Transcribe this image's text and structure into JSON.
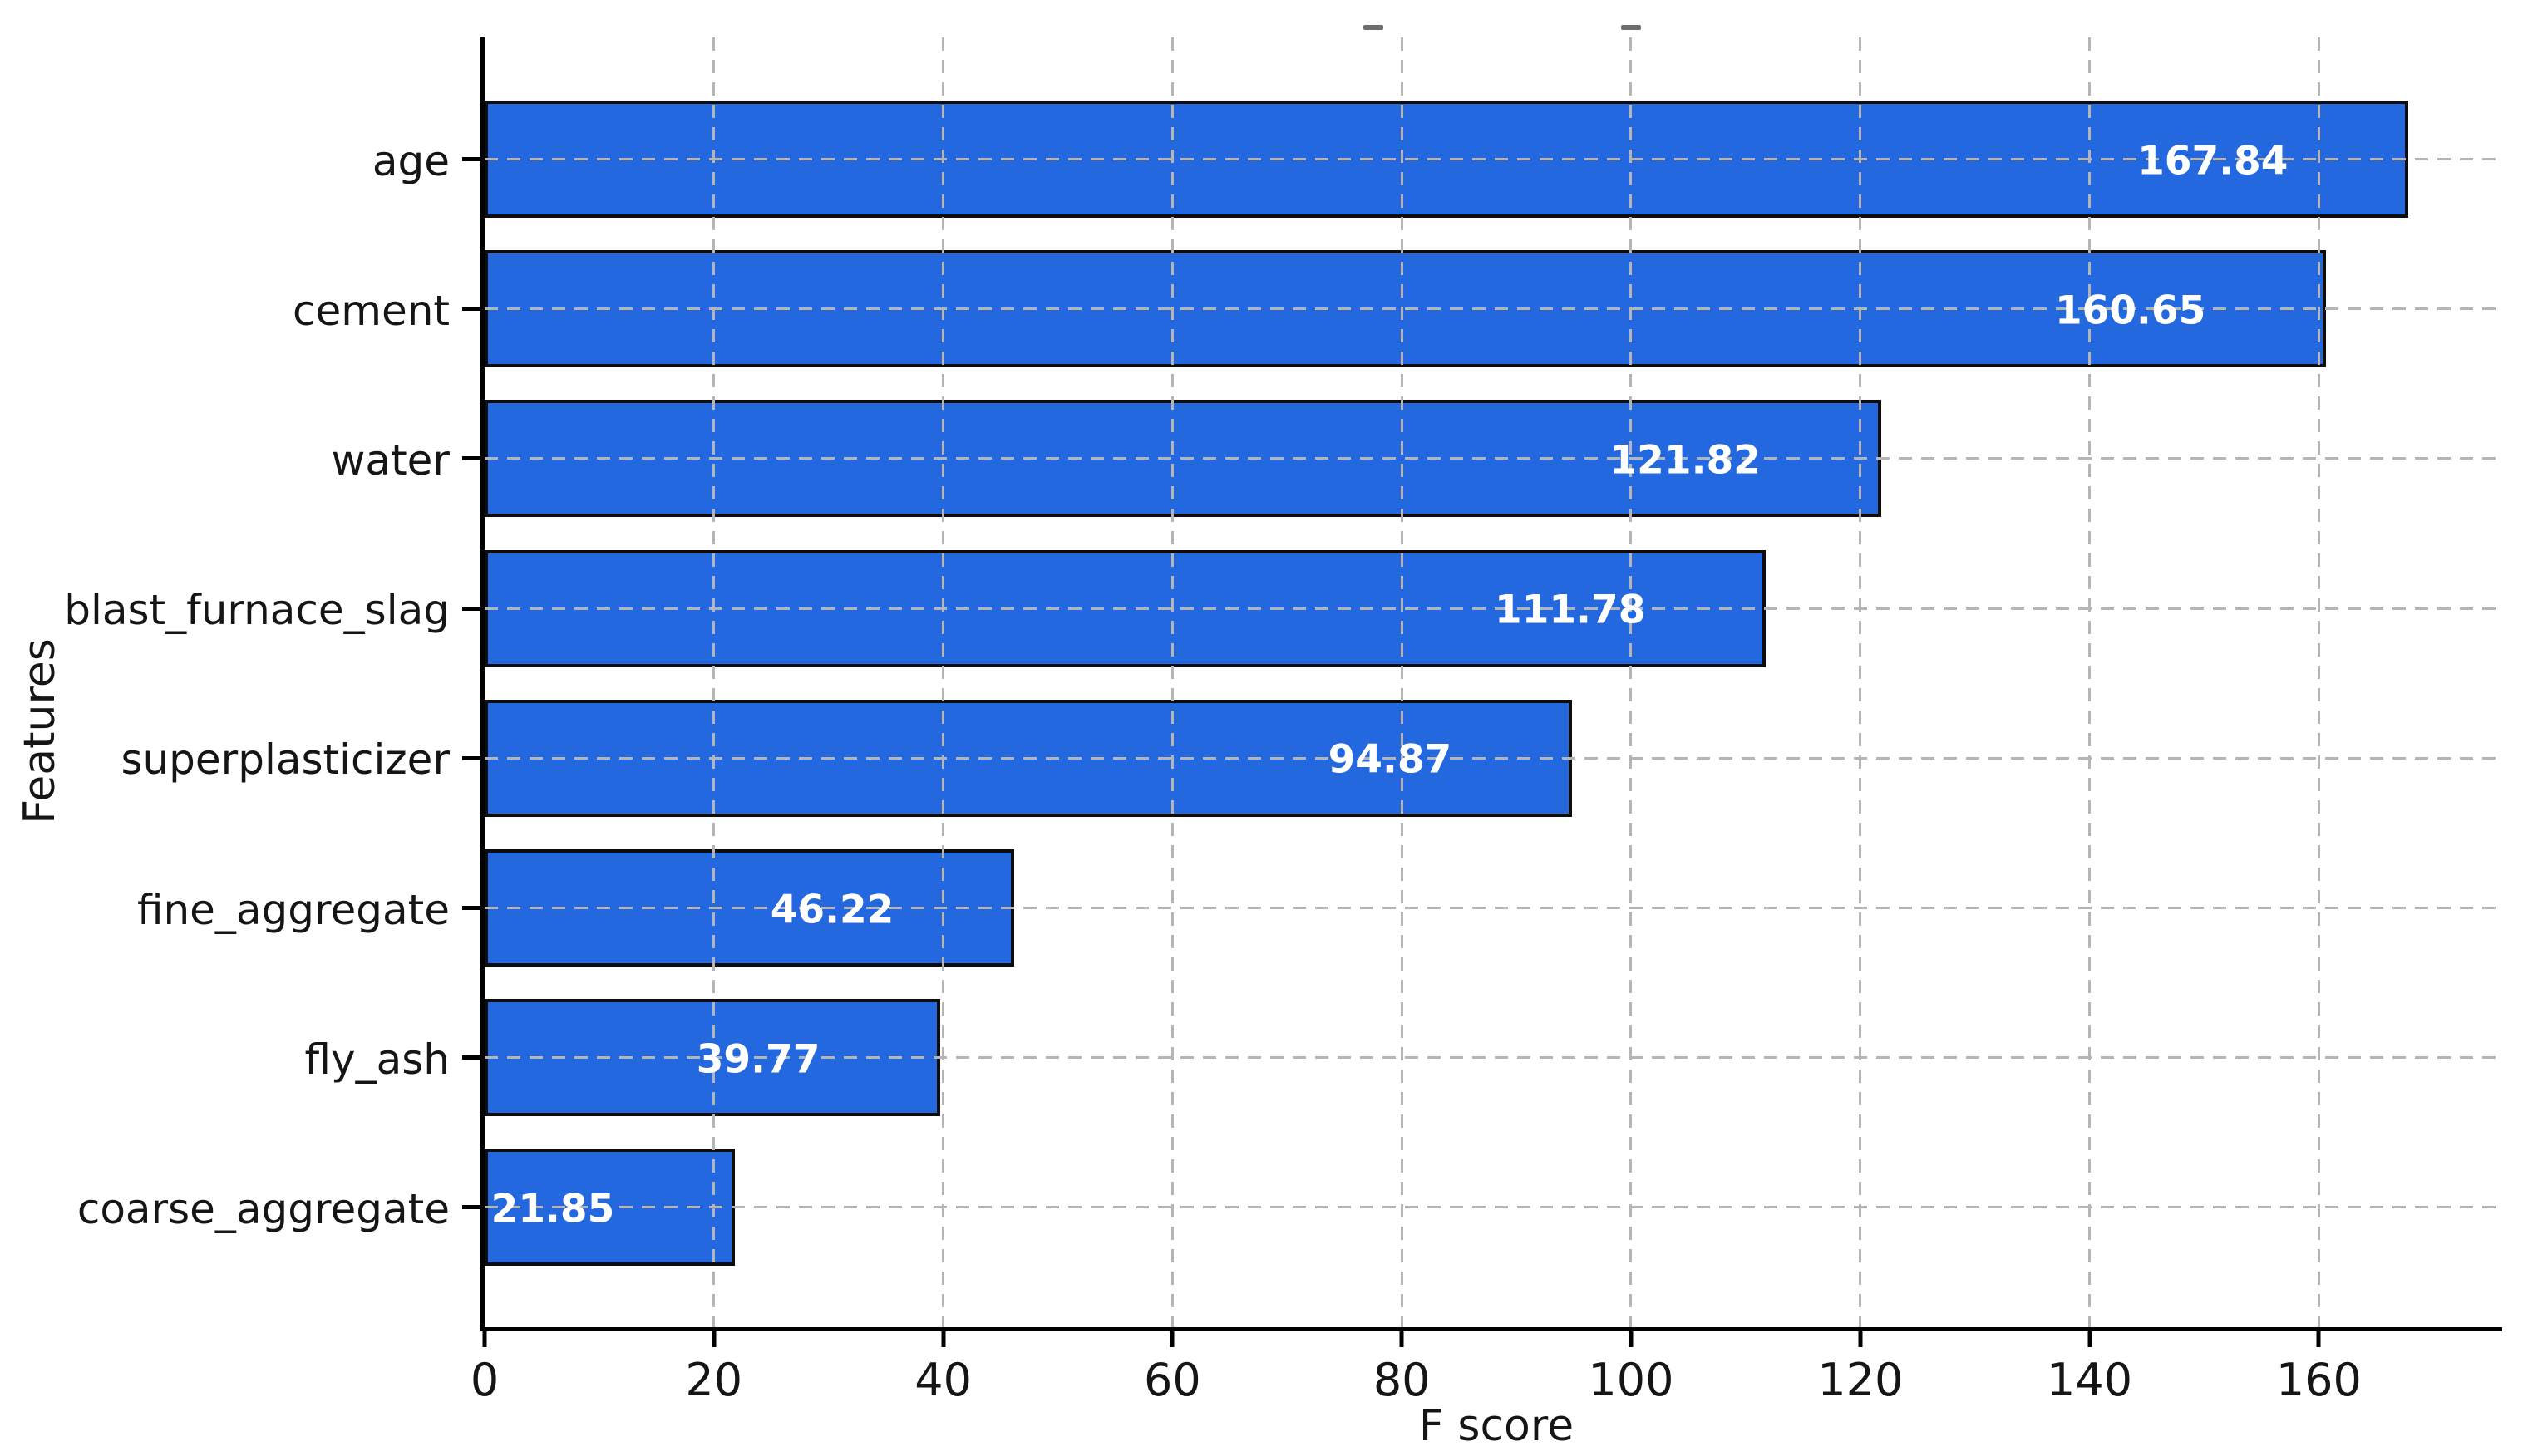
{
  "chart_data": {
    "type": "bar",
    "orientation": "horizontal",
    "title": "",
    "xlabel": "F score",
    "ylabel": "Features",
    "categories": [
      "age",
      "cement",
      "water",
      "blast_furnace_slag",
      "superplasticizer",
      "fine_aggregate",
      "fly_ash",
      "coarse_aggregate"
    ],
    "values": [
      167.84,
      160.65,
      121.82,
      111.78,
      94.87,
      46.22,
      39.77,
      21.85
    ],
    "value_labels": [
      "167.84",
      "160.65",
      "121.82",
      "111.78",
      "94.87",
      "46.22",
      "39.77",
      "21.85"
    ],
    "xticks": [
      0,
      20,
      40,
      60,
      80,
      100,
      120,
      140,
      160
    ],
    "xlim": [
      0,
      176
    ],
    "grid": true,
    "grid_style": "dashed",
    "legend": null,
    "colors": {
      "bar_fill": "#2468e0",
      "bar_edge": "#0d0d0d",
      "grid": "#b5b5b5",
      "value_label": "#ffffff",
      "axis_text": "#151515",
      "spine": "#000000",
      "background": "#ffffff"
    }
  }
}
